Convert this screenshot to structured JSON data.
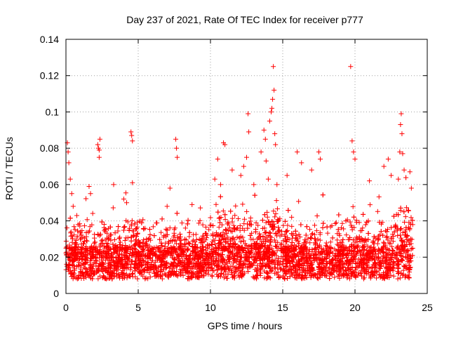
{
  "chart_data": {
    "type": "scatter",
    "title": "Day 237 of 2021, Rate Of TEC Index for receiver p777",
    "xlabel": "GPS time / hours",
    "ylabel": "ROTI / TECUs",
    "xlim": [
      0,
      25
    ],
    "ylim": [
      0,
      0.14
    ],
    "xticks": [
      0,
      5,
      10,
      15,
      20,
      25
    ],
    "xtick_labels": [
      "0",
      "5",
      "10",
      "15",
      "20",
      "25"
    ],
    "yticks": [
      0,
      0.02,
      0.04,
      0.06,
      0.08,
      0.1,
      0.12,
      0.14
    ],
    "ytick_labels": [
      "0",
      "0.02",
      "0.04",
      "0.06",
      "0.08",
      "0.1",
      "0.12",
      "0.14"
    ],
    "grid": true,
    "marker": "+",
    "color": "#ff0000",
    "series": [
      {
        "name": "ROTI",
        "description": "dense scatter of ROTI values, mostly 0.005-0.045 TECU/s across 0-24 h, with spikes",
        "points": [
          [
            0.1,
            0.083
          ],
          [
            0.15,
            0.078
          ],
          [
            0.2,
            0.072
          ],
          [
            0.3,
            0.063
          ],
          [
            0.4,
            0.055
          ],
          [
            0.5,
            0.048
          ],
          [
            1.6,
            0.059
          ],
          [
            1.7,
            0.055
          ],
          [
            2.2,
            0.082
          ],
          [
            2.25,
            0.08
          ],
          [
            2.3,
            0.079
          ],
          [
            2.35,
            0.085
          ],
          [
            2.3,
            0.075
          ],
          [
            3.3,
            0.06
          ],
          [
            4.0,
            0.052
          ],
          [
            4.2,
            0.05
          ],
          [
            4.5,
            0.089
          ],
          [
            4.55,
            0.087
          ],
          [
            4.6,
            0.084
          ],
          [
            4.6,
            0.061
          ],
          [
            7.0,
            0.048
          ],
          [
            7.2,
            0.058
          ],
          [
            7.6,
            0.085
          ],
          [
            7.65,
            0.08
          ],
          [
            7.7,
            0.075
          ],
          [
            10.3,
            0.063
          ],
          [
            10.5,
            0.074
          ],
          [
            10.7,
            0.06
          ],
          [
            10.9,
            0.083
          ],
          [
            11.0,
            0.082
          ],
          [
            11.5,
            0.068
          ],
          [
            12.1,
            0.065
          ],
          [
            12.3,
            0.07
          ],
          [
            12.5,
            0.075
          ],
          [
            12.6,
            0.099
          ],
          [
            12.65,
            0.089
          ],
          [
            13.0,
            0.06
          ],
          [
            13.5,
            0.078
          ],
          [
            13.7,
            0.09
          ],
          [
            13.8,
            0.085
          ],
          [
            13.85,
            0.073
          ],
          [
            14.0,
            0.063
          ],
          [
            14.1,
            0.095
          ],
          [
            14.2,
            0.1
          ],
          [
            14.25,
            0.102
          ],
          [
            14.3,
            0.107
          ],
          [
            14.35,
            0.125
          ],
          [
            14.4,
            0.112
          ],
          [
            14.45,
            0.088
          ],
          [
            14.5,
            0.082
          ],
          [
            14.6,
            0.06
          ],
          [
            15.3,
            0.065
          ],
          [
            16.0,
            0.078
          ],
          [
            16.3,
            0.072
          ],
          [
            17.0,
            0.068
          ],
          [
            17.5,
            0.078
          ],
          [
            17.6,
            0.074
          ],
          [
            19.7,
            0.125
          ],
          [
            19.8,
            0.084
          ],
          [
            19.9,
            0.078
          ],
          [
            20.0,
            0.074
          ],
          [
            21.0,
            0.062
          ],
          [
            22.0,
            0.07
          ],
          [
            22.3,
            0.074
          ],
          [
            22.5,
            0.065
          ],
          [
            23.0,
            0.063
          ],
          [
            23.1,
            0.078
          ],
          [
            23.15,
            0.093
          ],
          [
            23.2,
            0.099
          ],
          [
            23.25,
            0.088
          ],
          [
            23.3,
            0.077
          ],
          [
            23.4,
            0.068
          ],
          [
            23.8,
            0.067
          ],
          [
            23.9,
            0.058
          ]
        ]
      }
    ]
  }
}
